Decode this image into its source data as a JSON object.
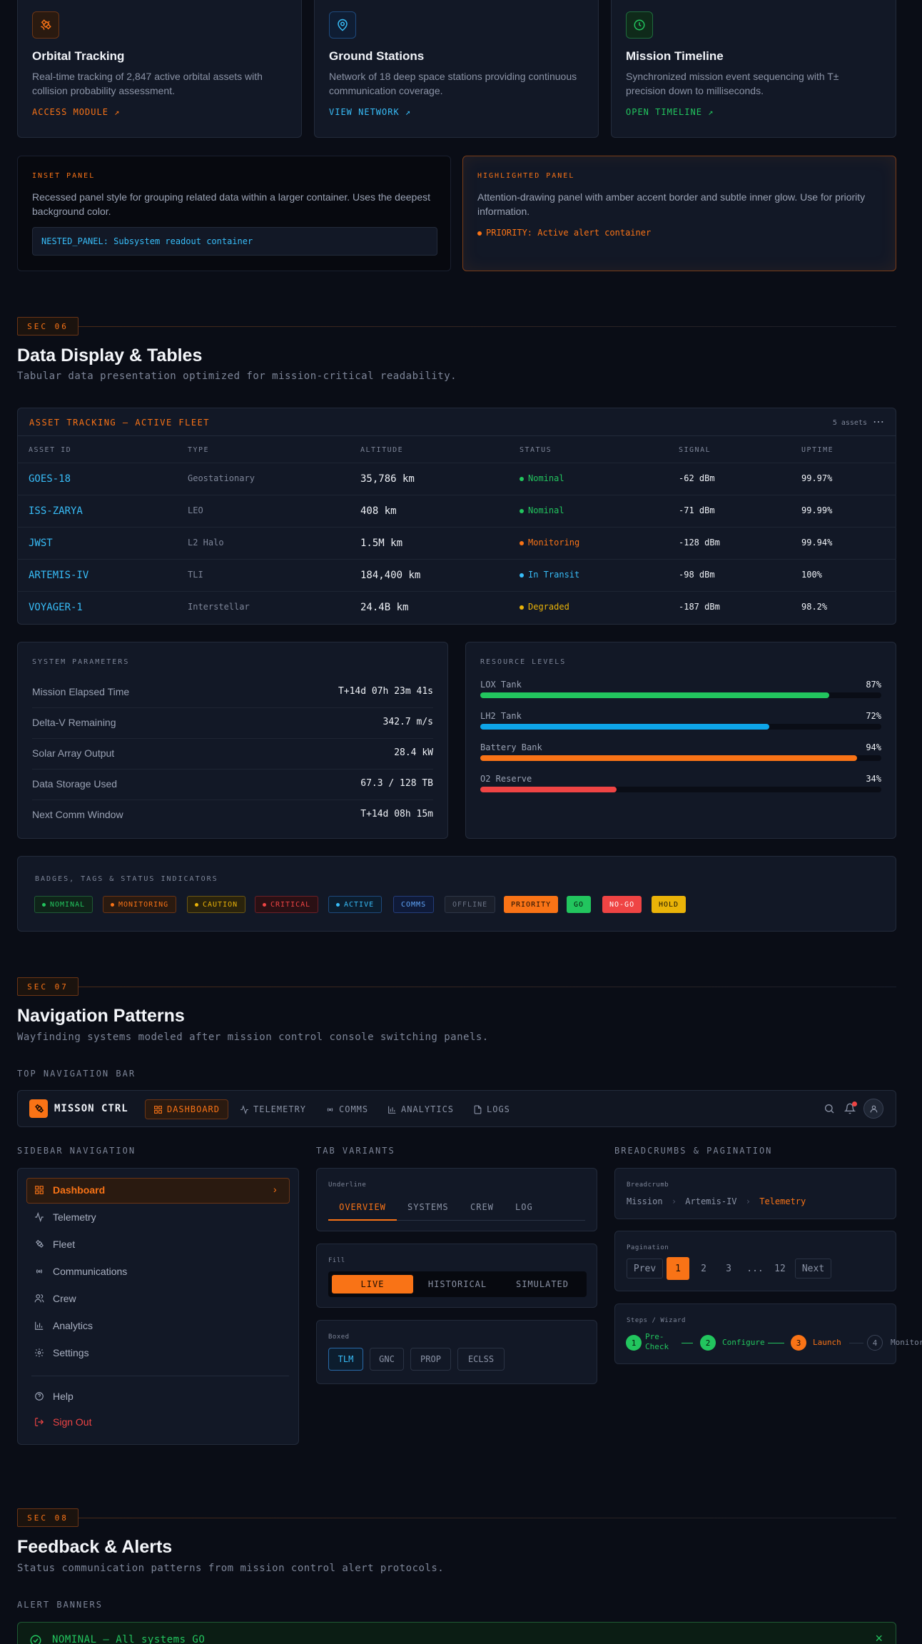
{
  "module_cards": [
    {
      "title": "Orbital Tracking",
      "desc": "Real-time tracking of 2,847 active orbital assets with collision probability assessment.",
      "link": "ACCESS MODULE ↗",
      "icon": "satellite-icon",
      "accent": "#f97316"
    },
    {
      "title": "Ground Stations",
      "desc": "Network of 18 deep space stations providing continuous communication coverage.",
      "link": "VIEW NETWORK ↗",
      "icon": "map-pin-icon",
      "accent": "#3b82f6"
    },
    {
      "title": "Mission Timeline",
      "desc": "Synchronized mission event sequencing with T± precision down to milliseconds.",
      "link": "OPEN TIMELINE ↗",
      "icon": "clock-icon",
      "accent": "#22c55e"
    }
  ],
  "inset_panel": {
    "label": "INSET PANEL",
    "text": "Recessed panel style for grouping related data within a larger container. Uses the deepest background color.",
    "nested": "NESTED_PANEL: Subsystem readout container"
  },
  "highlighted_panel": {
    "label": "HIGHLIGHTED PANEL",
    "text": "Attention-drawing panel with amber accent border and subtle inner glow. Use for priority information.",
    "priority": "PRIORITY: Active alert container"
  },
  "sec06": {
    "badge": "SEC 06",
    "title": "Data Display & Tables",
    "subtitle": "Tabular data presentation optimized for mission-critical readability."
  },
  "asset_table": {
    "title": "ASSET TRACKING — ACTIVE FLEET",
    "count": "5 assets",
    "more": "⋯",
    "headers": [
      "ASSET ID",
      "TYPE",
      "ALTITUDE",
      "STATUS",
      "SIGNAL",
      "UPTIME"
    ],
    "rows": [
      {
        "id": "GOES-18",
        "type": "Geostationary",
        "altitude": "35,786 km",
        "status": "Nominal",
        "status_color": "#22c55e",
        "signal": "-62 dBm",
        "uptime": "99.97%"
      },
      {
        "id": "ISS-ZARYA",
        "type": "LEO",
        "altitude": "408 km",
        "status": "Nominal",
        "status_color": "#22c55e",
        "signal": "-71 dBm",
        "uptime": "99.99%"
      },
      {
        "id": "JWST",
        "type": "L2 Halo",
        "altitude": "1.5M km",
        "status": "Monitoring",
        "status_color": "#f97316",
        "signal": "-128 dBm",
        "uptime": "99.94%"
      },
      {
        "id": "ARTEMIS-IV",
        "type": "TLI",
        "altitude": "184,400 km",
        "status": "In Transit",
        "status_color": "#38bdf8",
        "signal": "-98 dBm",
        "uptime": "100%"
      },
      {
        "id": "VOYAGER-1",
        "type": "Interstellar",
        "altitude": "24.4B km",
        "status": "Degraded",
        "status_color": "#eab308",
        "signal": "-187 dBm",
        "uptime": "98.2%"
      }
    ]
  },
  "system_params": {
    "label": "SYSTEM PARAMETERS",
    "rows": [
      {
        "label": "Mission Elapsed Time",
        "value": "T+14d 07h 23m 41s"
      },
      {
        "label": "Delta-V Remaining",
        "value": "342.7 m/s"
      },
      {
        "label": "Solar Array Output",
        "value": "28.4 kW"
      },
      {
        "label": "Data Storage Used",
        "value": "67.3 / 128 TB"
      },
      {
        "label": "Next Comm Window",
        "value": "T+14d 08h 15m"
      }
    ]
  },
  "resource_levels": {
    "label": "RESOURCE LEVELS",
    "items": [
      {
        "label": "LOX Tank",
        "value": "87%",
        "level": 87,
        "color": "#22c55e"
      },
      {
        "label": "LH2 Tank",
        "value": "72%",
        "level": 72,
        "color": "#0ea5e9"
      },
      {
        "label": "Battery Bank",
        "value": "94%",
        "level": 94,
        "color": "#f97316"
      },
      {
        "label": "O2 Reserve",
        "value": "34%",
        "level": 34,
        "color": "#ef4444"
      }
    ]
  },
  "badges": {
    "label": "BADGES, TAGS & STATUS INDICATORS",
    "items": [
      "NOMINAL",
      "MONITORING",
      "CAUTION",
      "CRITICAL",
      "ACTIVE",
      "COMMS",
      "OFFLINE",
      "PRIORITY",
      "GO",
      "NO-GO",
      "HOLD"
    ]
  },
  "sec07": {
    "badge": "SEC 07",
    "title": "Navigation Patterns",
    "subtitle": "Wayfinding systems modeled after mission control console switching panels."
  },
  "top_nav": {
    "section_label": "TOP NAVIGATION BAR",
    "brand": "MISSON CTRL",
    "items": [
      "DASHBOARD",
      "TELEMETRY",
      "COMMS",
      "ANALYTICS",
      "LOGS"
    ]
  },
  "sidebar": {
    "section_label": "SIDEBAR NAVIGATION",
    "items": [
      "Dashboard",
      "Telemetry",
      "Fleet",
      "Communications",
      "Crew",
      "Analytics",
      "Settings"
    ],
    "chevron": "›",
    "help": "Help",
    "signout": "Sign Out"
  },
  "tabs": {
    "section_label": "TAB VARIANTS",
    "underline_label": "Underline",
    "underline": [
      "OVERVIEW",
      "SYSTEMS",
      "CREW",
      "LOG"
    ],
    "fill_label": "Fill",
    "fill": [
      "LIVE",
      "HISTORICAL",
      "SIMULATED"
    ],
    "boxed_label": "Boxed",
    "boxed": [
      "TLM",
      "GNC",
      "PROP",
      "ECLSS"
    ]
  },
  "breadcrumbs": {
    "section_label": "BREADCRUMBS & PAGINATION",
    "label": "Breadcrumb",
    "items": [
      "Mission",
      "Artemis-IV",
      "Telemetry"
    ],
    "sep": "›",
    "pagination_label": "Pagination",
    "pages": [
      "Prev",
      "1",
      "2",
      "3",
      "...",
      "12",
      "Next"
    ],
    "steps_label": "Steps / Wizard",
    "steps": [
      {
        "num": "1",
        "label": "Pre-Check"
      },
      {
        "num": "2",
        "label": "Configure"
      },
      {
        "num": "3",
        "label": "Launch"
      },
      {
        "num": "4",
        "label": "Monitor"
      }
    ]
  },
  "sec08": {
    "badge": "SEC 08",
    "title": "Feedback & Alerts",
    "subtitle": "Status communication patterns from mission control alert protocols."
  },
  "alerts": {
    "section_label": "ALERT BANNERS",
    "first": "NOMINAL — All systems GO",
    "close": "×"
  }
}
